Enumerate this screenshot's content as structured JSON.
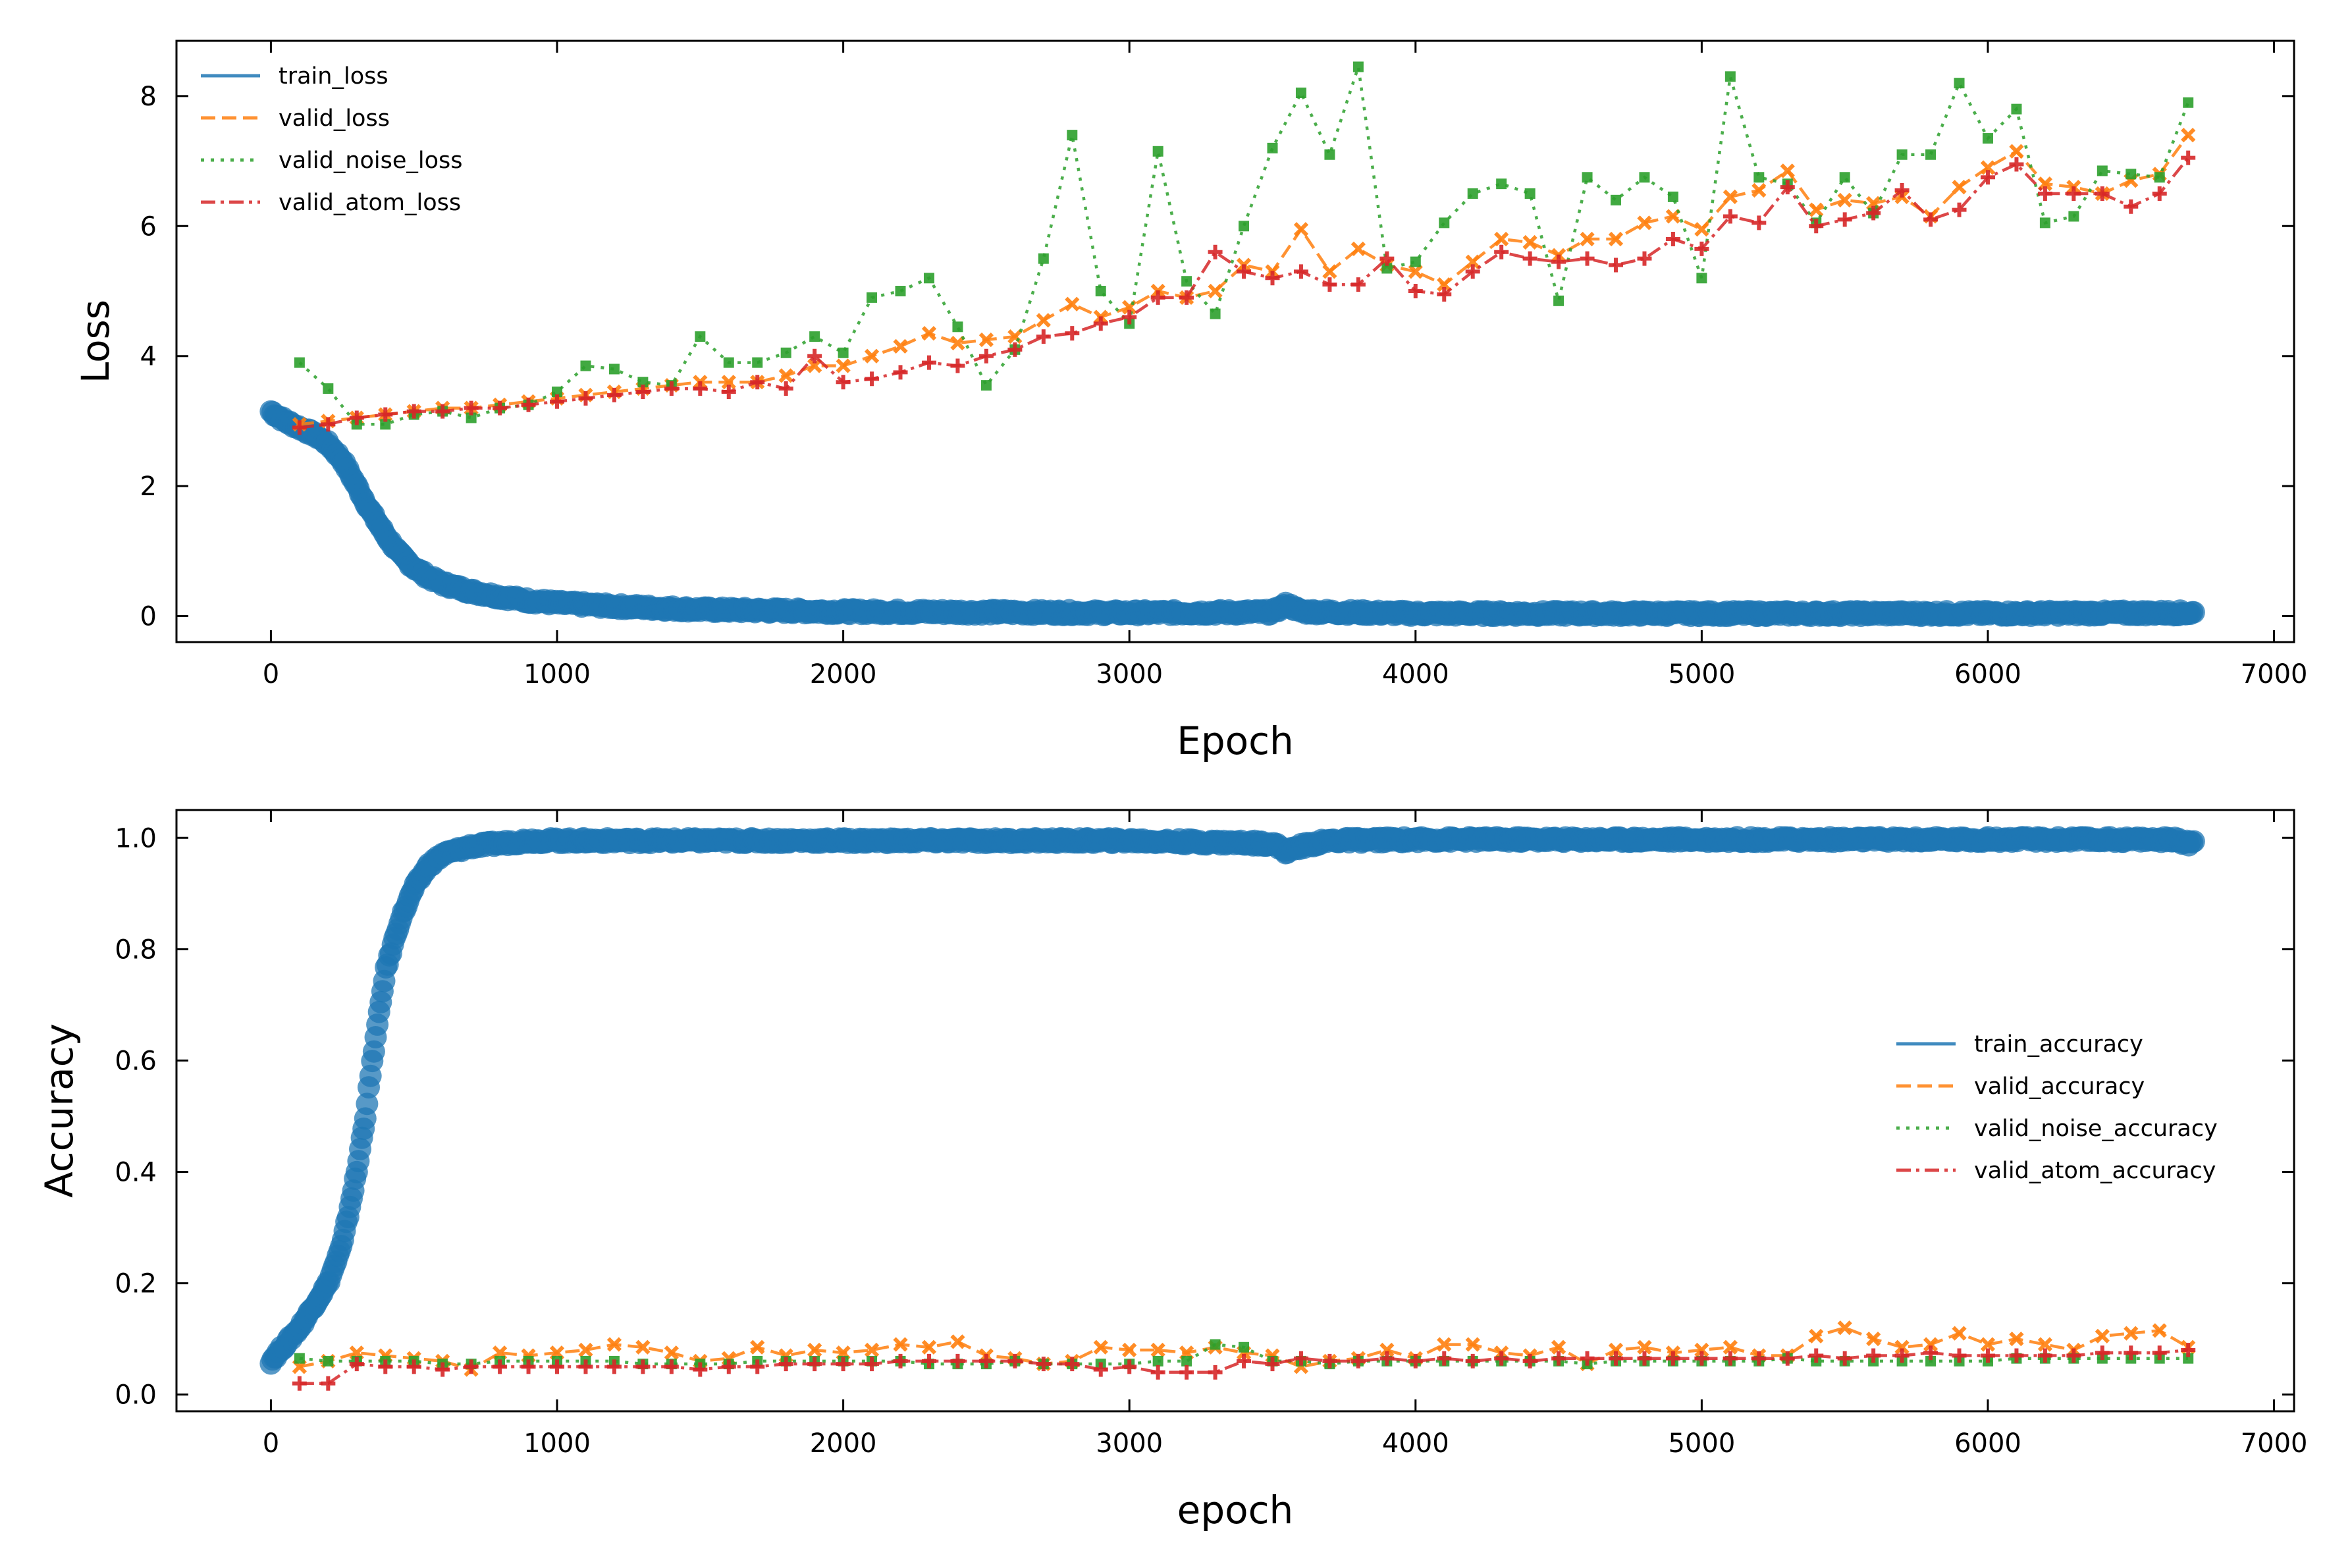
{
  "chart_data": [
    {
      "type": "line",
      "xlabel": "Epoch",
      "ylabel": "Loss",
      "xlim": [
        -330,
        7070
      ],
      "ylim": [
        -0.4,
        8.85
      ],
      "xticks": [
        0,
        1000,
        2000,
        3000,
        4000,
        5000,
        6000,
        7000
      ],
      "yticks": [
        0,
        2,
        4,
        6,
        8
      ],
      "xtick_labels": [
        "0",
        "1000",
        "2000",
        "3000",
        "4000",
        "5000",
        "6000",
        "7000"
      ],
      "ytick_labels": [
        "0",
        "2",
        "4",
        "6",
        "8"
      ],
      "legend_position": "top-left",
      "train_curve": {
        "x": [
          0,
          50,
          100,
          150,
          200,
          250,
          300,
          350,
          400,
          450,
          500,
          550,
          600,
          700,
          800,
          900,
          1000,
          1200,
          1500,
          2000,
          2500,
          3000,
          3500,
          3550,
          3600,
          4000,
          5000,
          6000,
          6700,
          6720
        ],
        "y": [
          3.15,
          3.0,
          2.9,
          2.8,
          2.65,
          2.4,
          2.0,
          1.6,
          1.25,
          0.95,
          0.75,
          0.6,
          0.5,
          0.38,
          0.3,
          0.24,
          0.2,
          0.15,
          0.1,
          0.07,
          0.06,
          0.05,
          0.06,
          0.18,
          0.07,
          0.04,
          0.04,
          0.04,
          0.05,
          0.05
        ]
      },
      "series": [
        {
          "name": "train_loss",
          "color": "#1f77b4",
          "style": "solid",
          "marker": "circle"
        },
        {
          "name": "valid_loss",
          "color": "#ff7f0e",
          "style": "dashed",
          "marker": "x",
          "x": [
            100,
            200,
            300,
            400,
            500,
            600,
            700,
            800,
            900,
            1000,
            1100,
            1200,
            1300,
            1400,
            1500,
            1600,
            1700,
            1800,
            1900,
            2000,
            2100,
            2200,
            2300,
            2400,
            2500,
            2600,
            2700,
            2800,
            2900,
            3000,
            3100,
            3200,
            3300,
            3400,
            3500,
            3600,
            3700,
            3800,
            3900,
            4000,
            4100,
            4200,
            4300,
            4400,
            4500,
            4600,
            4700,
            4800,
            4900,
            5000,
            5100,
            5200,
            5300,
            5400,
            5500,
            5600,
            5700,
            5800,
            5900,
            6000,
            6100,
            6200,
            6300,
            6400,
            6500,
            6600,
            6700
          ],
          "y": [
            2.95,
            3.0,
            3.05,
            3.1,
            3.15,
            3.2,
            3.2,
            3.25,
            3.3,
            3.35,
            3.4,
            3.45,
            3.5,
            3.55,
            3.6,
            3.6,
            3.6,
            3.7,
            3.85,
            3.85,
            4.0,
            4.15,
            4.35,
            4.2,
            4.25,
            4.3,
            4.55,
            4.8,
            4.6,
            4.75,
            5.0,
            4.9,
            5.0,
            5.4,
            5.3,
            5.95,
            5.3,
            5.65,
            5.4,
            5.3,
            5.1,
            5.45,
            5.8,
            5.75,
            5.55,
            5.8,
            5.8,
            6.05,
            6.15,
            5.95,
            6.45,
            6.55,
            6.85,
            6.25,
            6.4,
            6.35,
            6.45,
            6.15,
            6.6,
            6.9,
            7.15,
            6.65,
            6.6,
            6.5,
            6.7,
            6.8,
            7.4
          ]
        },
        {
          "name": "valid_noise_loss",
          "color": "#2ca02c",
          "style": "dotted",
          "marker": "square",
          "x": [
            100,
            200,
            300,
            400,
            500,
            600,
            700,
            800,
            900,
            1000,
            1100,
            1200,
            1300,
            1400,
            1500,
            1600,
            1700,
            1800,
            1900,
            2000,
            2100,
            2200,
            2300,
            2400,
            2500,
            2600,
            2700,
            2800,
            2900,
            3000,
            3100,
            3200,
            3300,
            3400,
            3500,
            3600,
            3700,
            3800,
            3900,
            4000,
            4100,
            4200,
            4300,
            4400,
            4500,
            4600,
            4700,
            4800,
            4900,
            5000,
            5100,
            5200,
            5300,
            5400,
            5500,
            5600,
            5700,
            5800,
            5900,
            6000,
            6100,
            6200,
            6300,
            6400,
            6500,
            6600,
            6700
          ],
          "y": [
            3.9,
            3.5,
            2.95,
            2.95,
            3.1,
            3.15,
            3.05,
            3.2,
            3.25,
            3.45,
            3.85,
            3.8,
            3.6,
            3.55,
            4.3,
            3.9,
            3.9,
            4.05,
            4.3,
            4.05,
            4.9,
            5.0,
            5.2,
            4.45,
            3.55,
            4.1,
            5.5,
            7.4,
            5.0,
            4.5,
            7.15,
            5.15,
            4.65,
            6.0,
            7.2,
            8.05,
            7.1,
            8.45,
            5.35,
            5.45,
            6.05,
            6.5,
            6.65,
            6.5,
            4.85,
            6.75,
            6.4,
            6.75,
            6.45,
            5.2,
            8.3,
            6.75,
            6.65,
            6.05,
            6.75,
            6.2,
            7.1,
            7.1,
            8.2,
            7.35,
            7.8,
            6.05,
            6.15,
            6.85,
            6.8,
            6.75,
            7.9
          ]
        },
        {
          "name": "valid_atom_loss",
          "color": "#d62728",
          "style": "dashdot",
          "marker": "plus",
          "x": [
            100,
            200,
            300,
            400,
            500,
            600,
            700,
            800,
            900,
            1000,
            1100,
            1200,
            1300,
            1400,
            1500,
            1600,
            1700,
            1800,
            1900,
            2000,
            2100,
            2200,
            2300,
            2400,
            2500,
            2600,
            2700,
            2800,
            2900,
            3000,
            3100,
            3200,
            3300,
            3400,
            3500,
            3600,
            3700,
            3800,
            3900,
            4000,
            4100,
            4200,
            4300,
            4400,
            4500,
            4600,
            4700,
            4800,
            4900,
            5000,
            5100,
            5200,
            5300,
            5400,
            5500,
            5600,
            5700,
            5800,
            5900,
            6000,
            6100,
            6200,
            6300,
            6400,
            6500,
            6600,
            6700
          ],
          "y": [
            2.9,
            2.95,
            3.05,
            3.1,
            3.15,
            3.15,
            3.2,
            3.2,
            3.25,
            3.3,
            3.35,
            3.4,
            3.45,
            3.5,
            3.5,
            3.45,
            3.6,
            3.5,
            4.0,
            3.6,
            3.65,
            3.75,
            3.9,
            3.85,
            4.0,
            4.1,
            4.3,
            4.35,
            4.5,
            4.6,
            4.9,
            4.9,
            5.6,
            5.3,
            5.2,
            5.3,
            5.1,
            5.1,
            5.5,
            5.0,
            4.95,
            5.3,
            5.6,
            5.5,
            5.45,
            5.5,
            5.4,
            5.5,
            5.8,
            5.65,
            6.15,
            6.05,
            6.6,
            6.0,
            6.1,
            6.2,
            6.55,
            6.1,
            6.25,
            6.75,
            6.95,
            6.5,
            6.5,
            6.5,
            6.3,
            6.5,
            7.05
          ]
        }
      ]
    },
    {
      "type": "line",
      "xlabel": "epoch",
      "ylabel": "Accuracy",
      "xlim": [
        -330,
        7070
      ],
      "ylim": [
        -0.03,
        1.05
      ],
      "xticks": [
        0,
        1000,
        2000,
        3000,
        4000,
        5000,
        6000,
        7000
      ],
      "yticks": [
        0.0,
        0.2,
        0.4,
        0.6,
        0.8,
        1.0
      ],
      "xtick_labels": [
        "0",
        "1000",
        "2000",
        "3000",
        "4000",
        "5000",
        "6000",
        "7000"
      ],
      "ytick_labels": [
        "0.0",
        "0.2",
        "0.4",
        "0.6",
        "0.8",
        "1.0"
      ],
      "legend_position": "center-right",
      "train_curve": {
        "x": [
          0,
          50,
          100,
          150,
          200,
          250,
          300,
          330,
          360,
          400,
          450,
          500,
          550,
          600,
          700,
          800,
          900,
          1000,
          1500,
          2000,
          2500,
          3000,
          3500,
          3550,
          3600,
          3700,
          4000,
          5000,
          6000,
          6650,
          6700,
          6720
        ],
        "y": [
          0.06,
          0.09,
          0.12,
          0.16,
          0.2,
          0.27,
          0.4,
          0.5,
          0.62,
          0.76,
          0.85,
          0.91,
          0.95,
          0.97,
          0.985,
          0.99,
          0.995,
          0.995,
          0.995,
          0.995,
          0.995,
          0.995,
          0.99,
          0.975,
          0.985,
          0.995,
          0.997,
          0.997,
          0.997,
          0.997,
          0.99,
          0.995
        ]
      },
      "series": [
        {
          "name": "train_accuracy",
          "color": "#1f77b4",
          "style": "solid",
          "marker": "circle"
        },
        {
          "name": "valid_accuracy",
          "color": "#ff7f0e",
          "style": "dashed",
          "marker": "x",
          "x": [
            100,
            200,
            300,
            400,
            500,
            600,
            700,
            800,
            900,
            1000,
            1100,
            1200,
            1300,
            1400,
            1500,
            1600,
            1700,
            1800,
            1900,
            2000,
            2100,
            2200,
            2300,
            2400,
            2500,
            2600,
            2700,
            2800,
            2900,
            3000,
            3100,
            3200,
            3300,
            3400,
            3500,
            3600,
            3700,
            3800,
            3900,
            4000,
            4100,
            4200,
            4300,
            4400,
            4500,
            4600,
            4700,
            4800,
            4900,
            5000,
            5100,
            5200,
            5300,
            5400,
            5500,
            5600,
            5700,
            5800,
            5900,
            6000,
            6100,
            6200,
            6300,
            6400,
            6500,
            6600,
            6700
          ],
          "y": [
            0.05,
            0.06,
            0.075,
            0.07,
            0.065,
            0.06,
            0.045,
            0.075,
            0.07,
            0.075,
            0.08,
            0.09,
            0.085,
            0.075,
            0.06,
            0.065,
            0.085,
            0.07,
            0.08,
            0.075,
            0.08,
            0.09,
            0.085,
            0.095,
            0.07,
            0.065,
            0.055,
            0.06,
            0.085,
            0.08,
            0.08,
            0.075,
            0.085,
            0.075,
            0.07,
            0.05,
            0.06,
            0.065,
            0.08,
            0.065,
            0.09,
            0.09,
            0.075,
            0.07,
            0.085,
            0.055,
            0.08,
            0.085,
            0.075,
            0.08,
            0.085,
            0.07,
            0.07,
            0.105,
            0.12,
            0.1,
            0.085,
            0.09,
            0.11,
            0.09,
            0.1,
            0.09,
            0.08,
            0.105,
            0.11,
            0.115,
            0.085
          ]
        },
        {
          "name": "valid_noise_accuracy",
          "color": "#2ca02c",
          "style": "dotted",
          "marker": "square",
          "x": [
            100,
            200,
            300,
            400,
            500,
            600,
            700,
            800,
            900,
            1000,
            1100,
            1200,
            1300,
            1400,
            1500,
            1600,
            1700,
            1800,
            1900,
            2000,
            2100,
            2200,
            2300,
            2400,
            2500,
            2600,
            2700,
            2800,
            2900,
            3000,
            3100,
            3200,
            3300,
            3400,
            3500,
            3600,
            3700,
            3800,
            3900,
            4000,
            4100,
            4200,
            4300,
            4400,
            4500,
            4600,
            4700,
            4800,
            4900,
            5000,
            5100,
            5200,
            5300,
            5400,
            5500,
            5600,
            5700,
            5800,
            5900,
            6000,
            6100,
            6200,
            6300,
            6400,
            6500,
            6600,
            6700
          ],
          "y": [
            0.065,
            0.06,
            0.06,
            0.06,
            0.06,
            0.055,
            0.055,
            0.06,
            0.06,
            0.06,
            0.06,
            0.06,
            0.055,
            0.055,
            0.055,
            0.055,
            0.06,
            0.06,
            0.06,
            0.06,
            0.06,
            0.06,
            0.055,
            0.055,
            0.055,
            0.06,
            0.055,
            0.055,
            0.055,
            0.055,
            0.06,
            0.06,
            0.09,
            0.085,
            0.06,
            0.06,
            0.055,
            0.06,
            0.06,
            0.06,
            0.06,
            0.06,
            0.06,
            0.06,
            0.06,
            0.055,
            0.06,
            0.06,
            0.06,
            0.06,
            0.06,
            0.06,
            0.065,
            0.06,
            0.06,
            0.06,
            0.06,
            0.06,
            0.06,
            0.06,
            0.065,
            0.065,
            0.065,
            0.065,
            0.065,
            0.065,
            0.065
          ]
        },
        {
          "name": "valid_atom_accuracy",
          "color": "#d62728",
          "style": "dashdot",
          "marker": "plus",
          "x": [
            100,
            200,
            300,
            400,
            500,
            600,
            700,
            800,
            900,
            1000,
            1100,
            1200,
            1300,
            1400,
            1500,
            1600,
            1700,
            1800,
            1900,
            2000,
            2100,
            2200,
            2300,
            2400,
            2500,
            2600,
            2700,
            2800,
            2900,
            3000,
            3100,
            3200,
            3300,
            3400,
            3500,
            3600,
            3700,
            3800,
            3900,
            4000,
            4100,
            4200,
            4300,
            4400,
            4500,
            4600,
            4700,
            4800,
            4900,
            5000,
            5100,
            5200,
            5300,
            5400,
            5500,
            5600,
            5700,
            5800,
            5900,
            6000,
            6100,
            6200,
            6300,
            6400,
            6500,
            6600,
            6700
          ],
          "y": [
            0.02,
            0.02,
            0.055,
            0.05,
            0.05,
            0.045,
            0.05,
            0.05,
            0.05,
            0.05,
            0.05,
            0.05,
            0.05,
            0.05,
            0.045,
            0.05,
            0.05,
            0.055,
            0.055,
            0.055,
            0.055,
            0.06,
            0.06,
            0.06,
            0.06,
            0.06,
            0.055,
            0.055,
            0.045,
            0.05,
            0.04,
            0.04,
            0.04,
            0.06,
            0.055,
            0.065,
            0.06,
            0.06,
            0.065,
            0.06,
            0.065,
            0.06,
            0.065,
            0.06,
            0.065,
            0.065,
            0.065,
            0.065,
            0.065,
            0.065,
            0.065,
            0.065,
            0.065,
            0.07,
            0.065,
            0.07,
            0.07,
            0.075,
            0.07,
            0.07,
            0.07,
            0.07,
            0.07,
            0.075,
            0.075,
            0.075,
            0.08
          ]
        }
      ]
    }
  ]
}
